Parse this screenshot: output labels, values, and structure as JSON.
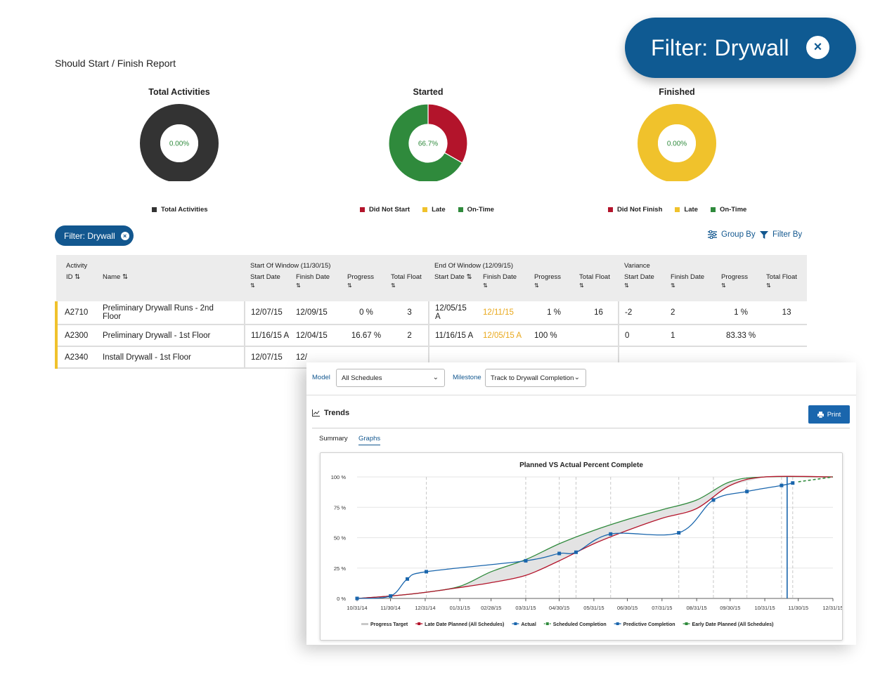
{
  "report": {
    "title": "Should Start / Finish Report"
  },
  "donuts": [
    {
      "title": "Total Activities",
      "center": "0.00%",
      "legend": [
        {
          "label": "Total Activities",
          "color": "#333333"
        }
      ],
      "slices": [
        {
          "value": 1.0,
          "color": "#333333"
        }
      ]
    },
    {
      "title": "Started",
      "center": "66.7%",
      "legend": [
        {
          "label": "Did Not Start",
          "color": "#b3142b"
        },
        {
          "label": "Late",
          "color": "#f0c22c"
        },
        {
          "label": "On-Time",
          "color": "#2f8a3c"
        }
      ],
      "slices": [
        {
          "value": 0.333,
          "color": "#b3142b"
        },
        {
          "value": 0.667,
          "color": "#2f8a3c"
        }
      ]
    },
    {
      "title": "Finished",
      "center": "0.00%",
      "legend": [
        {
          "label": "Did Not Finish",
          "color": "#b3142b"
        },
        {
          "label": "Late",
          "color": "#f0c22c"
        },
        {
          "label": "On-Time",
          "color": "#2f8a3c"
        }
      ],
      "slices": [
        {
          "value": 1.0,
          "color": "#f0c22c"
        }
      ]
    }
  ],
  "filter_pill": {
    "label": "Filter: Drywall",
    "close_icon": "×"
  },
  "filter_callout": {
    "label": "Filter: Drywall",
    "close_icon": "×"
  },
  "toolbar": {
    "group_by": "Group By",
    "filter_by": "Filter By"
  },
  "table": {
    "groups": {
      "activity": "Activity",
      "start_window": "Start Of Window (11/30/15)",
      "end_window": "End Of Window (12/09/15)",
      "variance": "Variance"
    },
    "columns": {
      "id": "ID",
      "name": "Name",
      "start_date": "Start Date",
      "finish_date": "Finish Date",
      "progress": "Progress",
      "total_float": "Total Float"
    },
    "rows": [
      {
        "id": "A2710",
        "name": "Preliminary Drywall Runs - 2nd Floor",
        "sw_start": "12/07/15",
        "sw_finish": "12/09/15",
        "sw_progress": "0 %",
        "sw_float": "3",
        "ew_start": "12/05/15 A",
        "ew_finish": "12/11/15",
        "ew_progress": "1 %",
        "ew_float": "16",
        "v_start": "-2",
        "v_finish": "2",
        "v_progress": "1 %",
        "v_float": "13"
      },
      {
        "id": "A2300",
        "name": "Preliminary Drywall - 1st Floor",
        "sw_start": "11/16/15 A",
        "sw_finish": "12/04/15",
        "sw_progress": "16.67 %",
        "sw_float": "2",
        "ew_start": "11/16/15 A",
        "ew_finish": "12/05/15 A",
        "ew_progress": "100 %",
        "ew_float": "",
        "v_start": "0",
        "v_finish": "1",
        "v_progress": "83.33 %",
        "v_float": ""
      },
      {
        "id": "A2340",
        "name": "Install Drywall - 1st Floor",
        "sw_start": "12/07/15",
        "sw_finish": "12/",
        "sw_progress": "",
        "sw_float": "",
        "ew_start": "",
        "ew_finish": "",
        "ew_progress": "",
        "ew_float": "",
        "v_start": "",
        "v_finish": "",
        "v_progress": "",
        "v_float": ""
      }
    ]
  },
  "panel": {
    "model_label": "Model",
    "model_value": "All Schedules",
    "milestone_label": "Milestone",
    "milestone_value": "Track to Drywall Completion",
    "section_title": "Trends",
    "print_label": "Print",
    "tabs": [
      "Summary",
      "Graphs"
    ],
    "active_tab": "Graphs"
  },
  "chart_data": {
    "type": "line",
    "title": "Planned VS Actual Percent Complete",
    "x_ticks": [
      "10/31/14",
      "11/30/14",
      "12/31/14",
      "01/31/15",
      "02/28/15",
      "03/31/15",
      "04/30/15",
      "05/31/15",
      "06/30/15",
      "07/31/15",
      "08/31/15",
      "09/30/15",
      "10/31/15",
      "11/30/15",
      "12/31/15"
    ],
    "y_ticks": [
      "0 %",
      "25 %",
      "50 %",
      "75 %",
      "100 %"
    ],
    "ylim": [
      0,
      100
    ],
    "x_range": [
      "2014-10-31",
      "2015-12-31"
    ],
    "grid": "vertical dashed at data points",
    "series": [
      {
        "name": "Progress Target",
        "color": "#c8c8c8",
        "style": "band"
      },
      {
        "name": "Late Date Planned (All Schedules)",
        "color": "#b3142b",
        "points": [
          [
            "2014-10-31",
            0
          ],
          [
            "2014-11-30",
            2
          ],
          [
            "2014-12-31",
            5
          ],
          [
            "2015-01-31",
            9
          ],
          [
            "2015-02-28",
            13
          ],
          [
            "2015-03-31",
            19
          ],
          [
            "2015-04-30",
            31
          ],
          [
            "2015-05-31",
            45
          ],
          [
            "2015-06-30",
            56
          ],
          [
            "2015-07-31",
            66
          ],
          [
            "2015-08-31",
            74
          ],
          [
            "2015-09-30",
            93
          ],
          [
            "2015-10-31",
            100
          ],
          [
            "2015-12-31",
            100
          ]
        ]
      },
      {
        "name": "Actual",
        "color": "#1a66ad",
        "marker": "square",
        "points": [
          [
            "2014-10-31",
            0
          ],
          [
            "2014-11-30",
            2
          ],
          [
            "2014-12-15",
            16
          ],
          [
            "2015-01-01",
            22
          ],
          [
            "2015-03-31",
            31
          ],
          [
            "2015-04-30",
            37
          ],
          [
            "2015-05-15",
            38
          ],
          [
            "2015-06-15",
            53
          ],
          [
            "2015-08-15",
            54
          ],
          [
            "2015-09-15",
            81
          ],
          [
            "2015-10-15",
            88
          ],
          [
            "2015-11-15",
            93
          ],
          [
            "2015-11-25",
            95
          ]
        ]
      },
      {
        "name": "Scheduled Completion",
        "color": "#2f8a3c",
        "style": "dashed",
        "points": [
          [
            "2015-11-30",
            96
          ],
          [
            "2015-12-31",
            100
          ]
        ]
      },
      {
        "name": "Predictive Completion",
        "color": "#1a66ad",
        "style": "vertical",
        "points": [
          [
            "2015-11-20",
            0
          ],
          [
            "2015-11-20",
            100
          ]
        ]
      },
      {
        "name": "Early Date Planned (All Schedules)",
        "color": "#2f8a3c",
        "points": [
          [
            "2014-10-31",
            0
          ],
          [
            "2014-11-30",
            2
          ],
          [
            "2014-12-31",
            5
          ],
          [
            "2015-01-31",
            10
          ],
          [
            "2015-02-28",
            22
          ],
          [
            "2015-03-31",
            32
          ],
          [
            "2015-04-30",
            45
          ],
          [
            "2015-05-31",
            56
          ],
          [
            "2015-06-30",
            65
          ],
          [
            "2015-07-31",
            73
          ],
          [
            "2015-08-31",
            81
          ],
          [
            "2015-09-30",
            96
          ],
          [
            "2015-10-31",
            100
          ],
          [
            "2015-12-31",
            100
          ]
        ]
      }
    ]
  }
}
